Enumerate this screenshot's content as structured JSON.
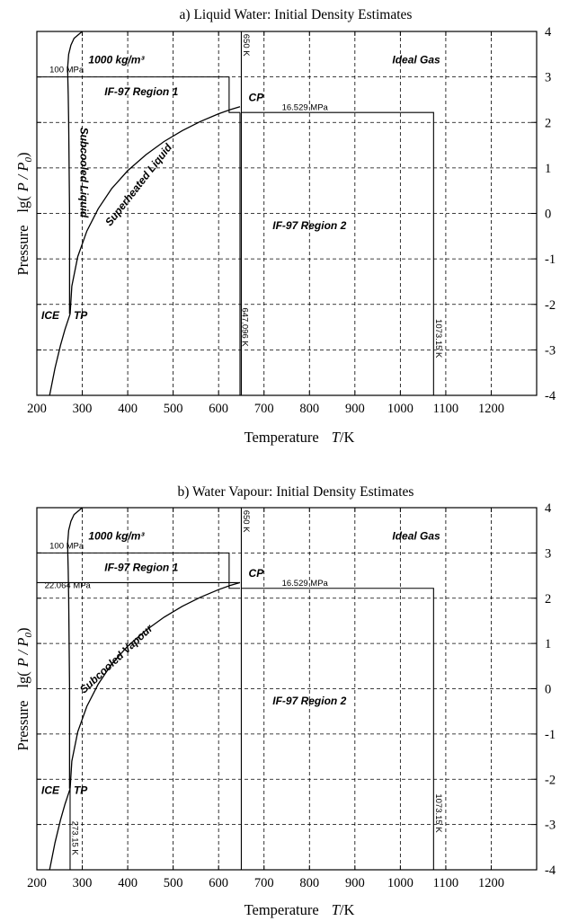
{
  "chart_data": [
    {
      "type": "line",
      "title": "a) Liquid Water: Initial Density Estimates",
      "xlabel": "Temperature",
      "xlabel_symbol": "T",
      "xlabel_unit": "/K",
      "ylabel": "Pressure",
      "ylabel_expr": "lg(",
      "ylabel_frac": "P / P",
      "ylabel_sub": "0",
      "ylabel_close": ")",
      "xlim": [
        200,
        1300
      ],
      "ylim": [
        -4,
        4
      ],
      "xticks": [
        "200",
        "300",
        "400",
        "500",
        "600",
        "700",
        "800",
        "900",
        "1000",
        "1100",
        "1200"
      ],
      "yticks": [
        "-4",
        "-3",
        "-2",
        "-1",
        "0",
        "1",
        "2",
        "3",
        "4"
      ],
      "grid": true,
      "labels": {
        "density": "1000 kg/m³",
        "ideal_gas": "Ideal Gas",
        "region1": "IF-97 Region 1",
        "region2": "IF-97 Region 2",
        "cp": "CP",
        "ice": "ICE",
        "tp": "TP",
        "p100": "100 MPa",
        "p16": "16.529 MPa",
        "t650": "650 K",
        "t647": "647.096 K",
        "t1073": "1073.15 K",
        "phase_left": "Subcooled Liquid",
        "phase_right": "Superheated Liquid"
      },
      "series": [
        {
          "x": [
            273.16,
            277,
            290,
            310,
            335,
            365,
            400,
            440,
            480,
            520,
            560,
            600,
            625,
            647.096
          ],
          "y": [
            -2.21,
            -1.6,
            -0.95,
            -0.39,
            0.1,
            0.55,
            0.94,
            1.29,
            1.58,
            1.82,
            2.02,
            2.19,
            2.28,
            2.344
          ]
        },
        {
          "x": [
            228,
            240,
            252,
            262,
            273.16
          ],
          "y": [
            -4,
            -3.4,
            -2.9,
            -2.55,
            -2.21
          ]
        },
        {
          "x": [
            272,
            272,
            271,
            270,
            269,
            268,
            268,
            270,
            275,
            282,
            300
          ],
          "y": [
            -2.21,
            0,
            1.0,
            2.0,
            2.6,
            3.0,
            3.25,
            3.5,
            3.7,
            3.85,
            4
          ]
        }
      ]
    },
    {
      "type": "line",
      "title": "b) Water Vapour: Initial Density Estimates",
      "xlabel": "Temperature",
      "xlabel_symbol": "T",
      "xlabel_unit": "/K",
      "ylabel": "Pressure",
      "ylabel_expr": "lg(",
      "ylabel_frac": "P / P",
      "ylabel_sub": "0",
      "ylabel_close": ")",
      "xlim": [
        200,
        1300
      ],
      "ylim": [
        -4,
        4
      ],
      "xticks": [
        "200",
        "300",
        "400",
        "500",
        "600",
        "700",
        "800",
        "900",
        "1000",
        "1100",
        "1200"
      ],
      "yticks": [
        "-4",
        "-3",
        "-2",
        "-1",
        "0",
        "1",
        "2",
        "3",
        "4"
      ],
      "grid": true,
      "labels": {
        "density": "1000 kg/m³",
        "ideal_gas": "Ideal Gas",
        "region1": "IF-97 Region 1",
        "region2": "IF-97 Region 2",
        "cp": "CP",
        "ice": "ICE",
        "tp": "TP",
        "p100": "100 MPa",
        "p22": "22.064 MPa",
        "p16": "16.529 MPa",
        "t650": "650 K",
        "t1073": "1073.15 K",
        "t273": "273.15 K",
        "phase_curve": "Subcooled Vapour"
      },
      "series": [
        {
          "x": [
            273.16,
            277,
            290,
            310,
            335,
            365,
            400,
            440,
            480,
            520,
            560,
            600,
            625,
            647.096
          ],
          "y": [
            -2.21,
            -1.6,
            -0.95,
            -0.39,
            0.1,
            0.55,
            0.94,
            1.29,
            1.58,
            1.82,
            2.02,
            2.19,
            2.28,
            2.344
          ]
        },
        {
          "x": [
            228,
            240,
            252,
            262,
            273.16
          ],
          "y": [
            -4,
            -3.4,
            -2.9,
            -2.55,
            -2.21
          ]
        },
        {
          "x": [
            272,
            272,
            271,
            270,
            269,
            268,
            268,
            270,
            275,
            282,
            300
          ],
          "y": [
            -2.21,
            0,
            1.0,
            2.0,
            2.6,
            3.0,
            3.25,
            3.5,
            3.7,
            3.85,
            4
          ]
        }
      ]
    }
  ]
}
